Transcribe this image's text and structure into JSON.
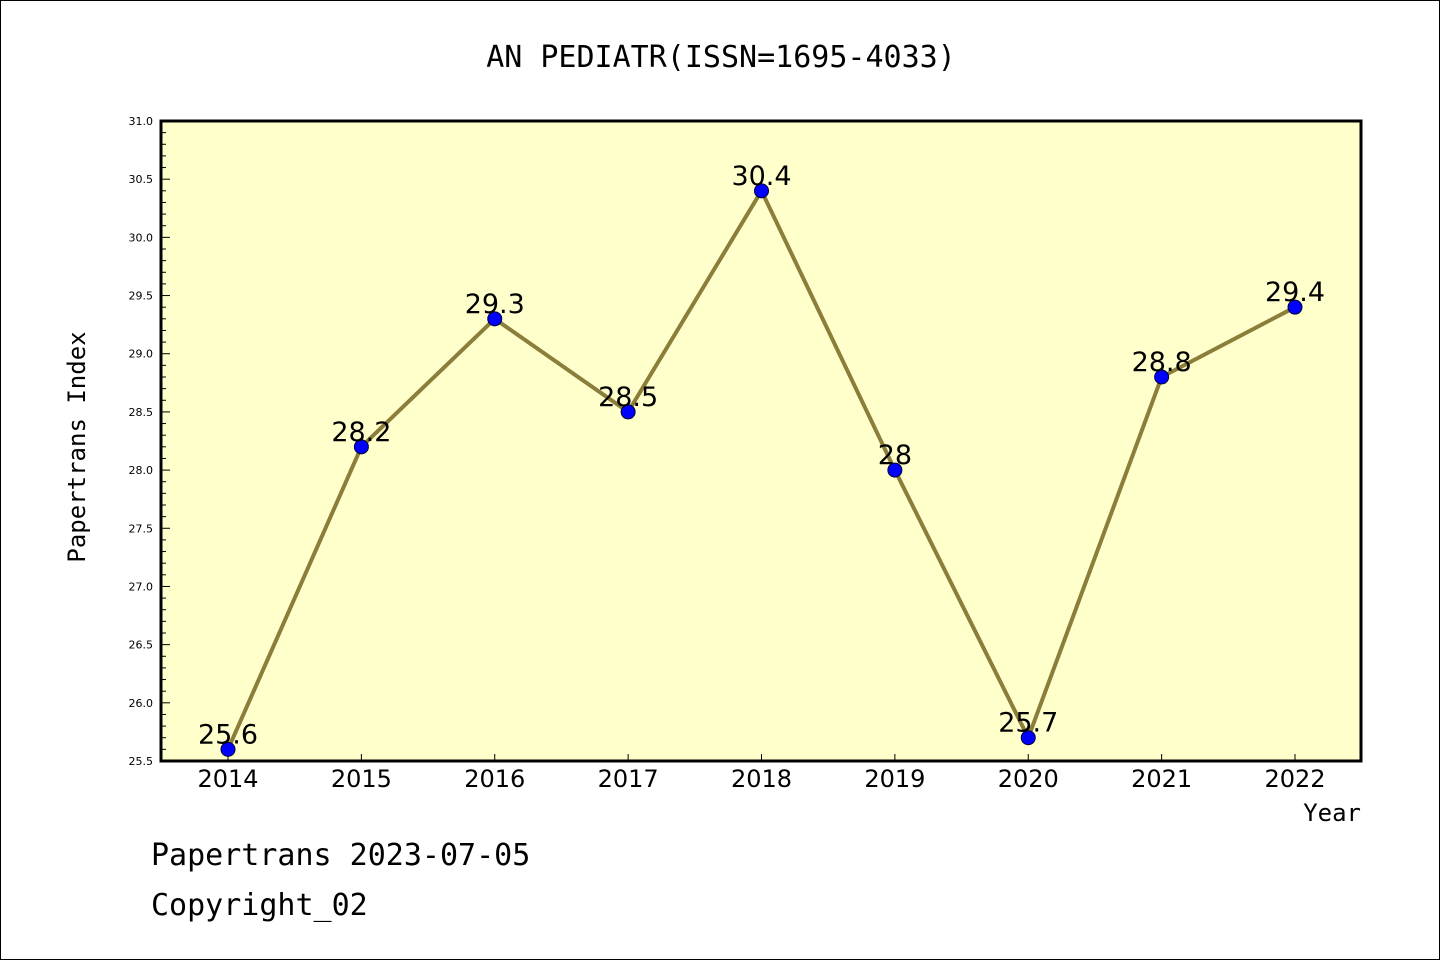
{
  "chart_data": {
    "type": "line",
    "title": "AN PEDIATR(ISSN=1695-4033)",
    "xlabel": "Year",
    "ylabel": "Papertrans Index",
    "categories": [
      "2014",
      "2015",
      "2016",
      "2017",
      "2018",
      "2019",
      "2020",
      "2021",
      "2022"
    ],
    "values": [
      25.6,
      28.2,
      29.3,
      28.5,
      30.4,
      28,
      25.7,
      28.8,
      29.4
    ],
    "value_labels": [
      "25.6",
      "28.2",
      "29.3",
      "28.5",
      "30.4",
      "28",
      "25.7",
      "28.8",
      "29.4"
    ],
    "ylim": [
      25.5,
      31.0
    ],
    "yticks": [
      "25.5",
      "26.0",
      "26.5",
      "27.0",
      "27.5",
      "28.0",
      "28.5",
      "29.0",
      "29.5",
      "30.0",
      "30.5",
      "31.0"
    ],
    "grid": false,
    "legend": "none",
    "colors": {
      "plot_background": "#ffffcc",
      "line": "#8b7d3a",
      "marker_fill": "#0000ff",
      "marker_edge": "#000033"
    }
  },
  "footer": {
    "line1": "Papertrans 2023-07-05",
    "line2": "Copyright_02"
  }
}
